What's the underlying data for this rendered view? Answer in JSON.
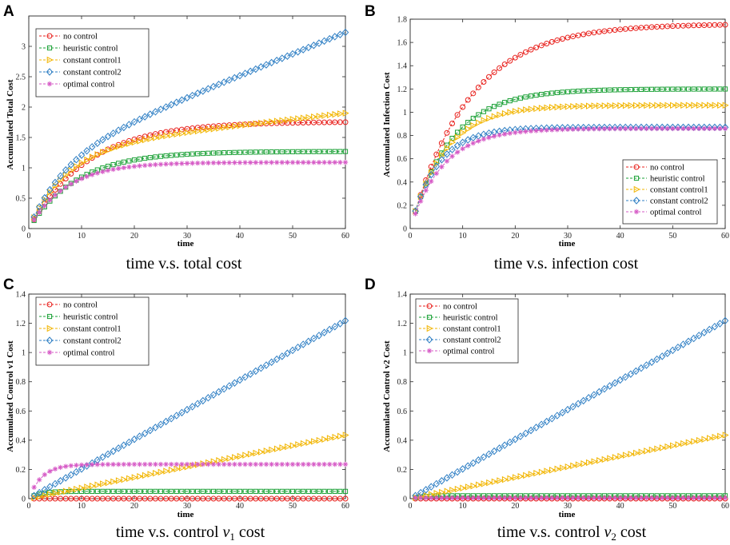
{
  "colors": {
    "no control": "#e8201c",
    "heuristic control": "#1aa035",
    "constant control1": "#f2b500",
    "constant control2": "#2f7fc4",
    "optimal control": "#d65ac6"
  },
  "chart_data": [
    {
      "type": "line",
      "panel": "A",
      "title": "time v.s. total cost",
      "xlabel": "time",
      "ylabel": "Accumulated Total Cost",
      "xlim": [
        0,
        60
      ],
      "ylim": [
        0,
        3.5
      ],
      "xticks": [
        0,
        10,
        20,
        30,
        40,
        50,
        60
      ],
      "yticks": [
        0,
        0.5,
        1,
        1.5,
        2,
        2.5,
        3
      ],
      "legend_position": "top-left",
      "series": [
        {
          "name": "no control",
          "marker": "circle",
          "model": "sat",
          "A": 1.76,
          "k": 0.09
        },
        {
          "name": "heuristic control",
          "marker": "square",
          "model": "sat",
          "A": 1.27,
          "k": 0.11
        },
        {
          "name": "constant control1",
          "marker": "triangle",
          "model": "satlin",
          "A": 1.3,
          "k": 0.14,
          "s": 0.01
        },
        {
          "name": "constant control2",
          "marker": "diamond",
          "model": "satlin",
          "A": 1.1,
          "k": 0.15,
          "s": 0.0355
        },
        {
          "name": "optimal control",
          "marker": "star",
          "model": "sat",
          "A": 1.09,
          "k": 0.14
        }
      ]
    },
    {
      "type": "line",
      "panel": "B",
      "title": "time v.s. infection cost",
      "xlabel": "time",
      "ylabel": "Accumulated Infection Cost",
      "xlim": [
        0,
        60
      ],
      "ylim": [
        0,
        1.8
      ],
      "xticks": [
        0,
        10,
        20,
        30,
        40,
        50,
        60
      ],
      "yticks": [
        0,
        0.2,
        0.4,
        0.6,
        0.8,
        1,
        1.2,
        1.4,
        1.6,
        1.8
      ],
      "legend_position": "bottom-right",
      "series": [
        {
          "name": "no control",
          "marker": "circle",
          "model": "sat",
          "A": 1.76,
          "k": 0.09
        },
        {
          "name": "heuristic control",
          "marker": "square",
          "model": "sat",
          "A": 1.2,
          "k": 0.13
        },
        {
          "name": "constant control1",
          "marker": "triangle",
          "model": "sat",
          "A": 1.06,
          "k": 0.15
        },
        {
          "name": "constant control2",
          "marker": "diamond",
          "model": "sat",
          "A": 0.87,
          "k": 0.19
        },
        {
          "name": "optimal control",
          "marker": "star",
          "model": "sat",
          "A": 0.86,
          "k": 0.16
        }
      ]
    },
    {
      "type": "line",
      "panel": "C",
      "title": "time v.s. control v1 cost",
      "caption_prefix": "time v.s. control ",
      "caption_var": "v",
      "caption_sub": "1",
      "caption_suffix": " cost",
      "xlabel": "time",
      "ylabel": "Accumulated Control v1 Cost",
      "xlim": [
        0,
        60
      ],
      "ylim": [
        0,
        1.4
      ],
      "xticks": [
        0,
        10,
        20,
        30,
        40,
        50,
        60
      ],
      "yticks": [
        0,
        0.2,
        0.4,
        0.6,
        0.8,
        1,
        1.2,
        1.4
      ],
      "legend_position": "top-left",
      "series": [
        {
          "name": "no control",
          "marker": "circle",
          "model": "const",
          "A": 0.0
        },
        {
          "name": "heuristic control",
          "marker": "square",
          "model": "sat",
          "A": 0.05,
          "k": 0.5
        },
        {
          "name": "constant control1",
          "marker": "triangle",
          "model": "lin",
          "s": 0.00725
        },
        {
          "name": "constant control2",
          "marker": "diamond",
          "model": "lin",
          "s": 0.0203
        },
        {
          "name": "optimal control",
          "marker": "star",
          "model": "sat",
          "A": 0.235,
          "k": 0.4
        }
      ]
    },
    {
      "type": "line",
      "panel": "D",
      "title": "time v.s. control v2 cost",
      "caption_prefix": "time v.s. control ",
      "caption_var": "v",
      "caption_sub": "2",
      "caption_suffix": " cost",
      "xlabel": "time",
      "ylabel": "Accumulated Control v2 Cost",
      "xlim": [
        0,
        60
      ],
      "ylim": [
        0,
        1.4
      ],
      "xticks": [
        0,
        10,
        20,
        30,
        40,
        50,
        60
      ],
      "yticks": [
        0,
        0.2,
        0.4,
        0.6,
        0.8,
        1,
        1.2,
        1.4
      ],
      "legend_position": "top-left",
      "series": [
        {
          "name": "no control",
          "marker": "circle",
          "model": "const",
          "A": 0.0
        },
        {
          "name": "heuristic control",
          "marker": "square",
          "model": "sat",
          "A": 0.02,
          "k": 0.5
        },
        {
          "name": "constant control1",
          "marker": "triangle",
          "model": "lin",
          "s": 0.00725
        },
        {
          "name": "constant control2",
          "marker": "diamond",
          "model": "lin",
          "s": 0.0203
        },
        {
          "name": "optimal control",
          "marker": "star",
          "model": "const",
          "A": 0.005
        }
      ]
    }
  ]
}
